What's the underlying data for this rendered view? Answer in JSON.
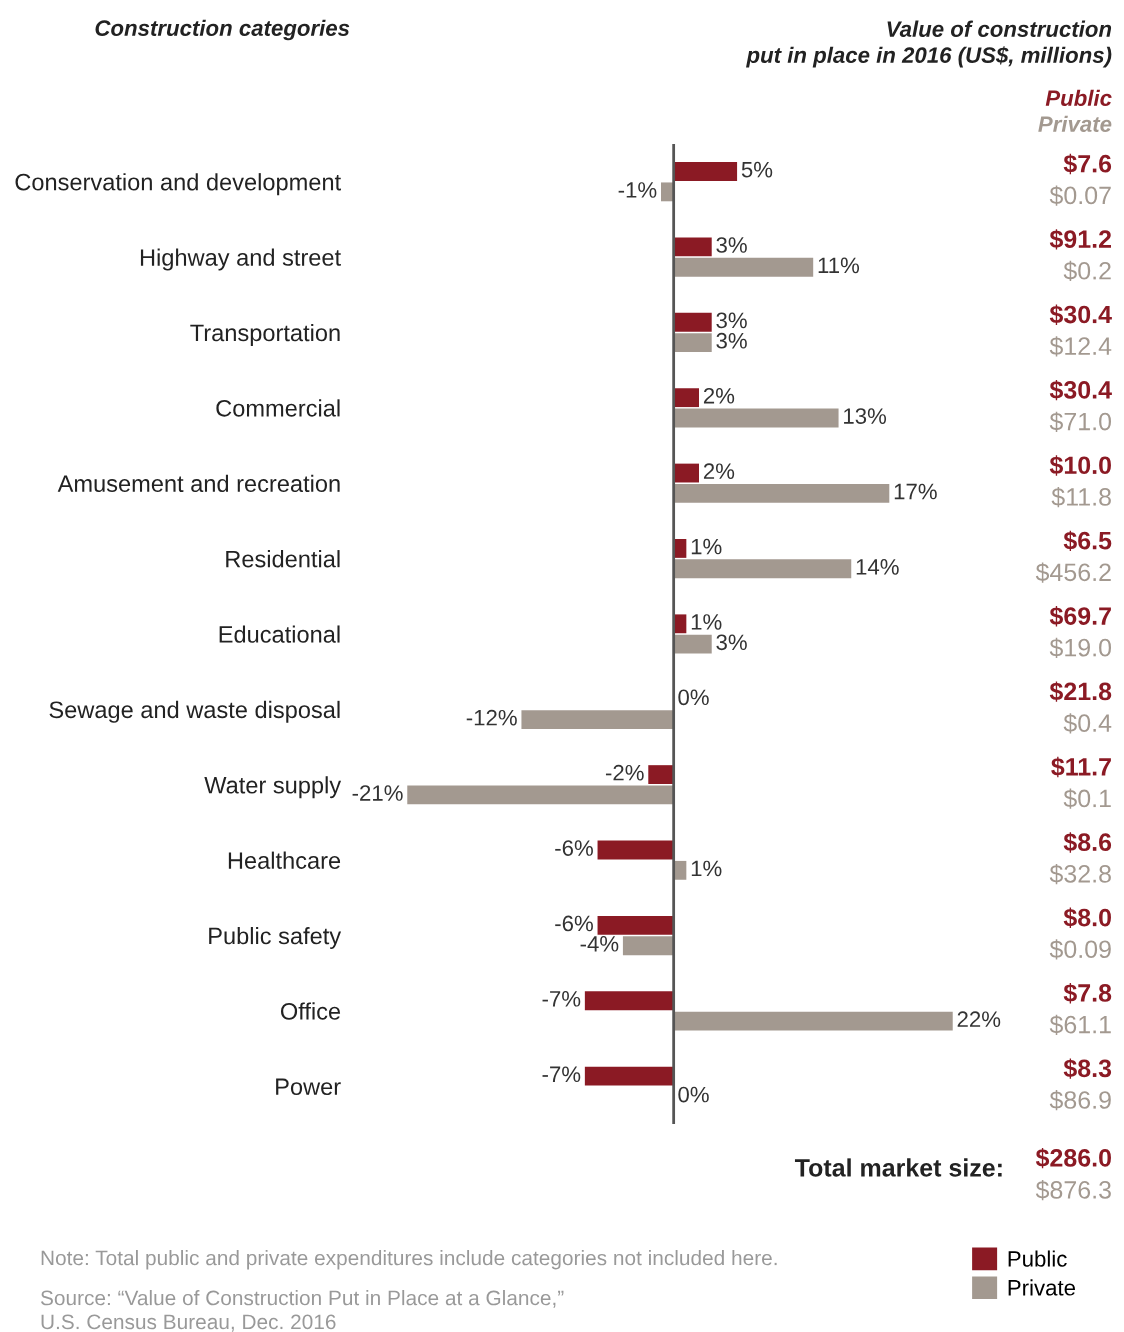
{
  "chart_data": {
    "type": "bar",
    "orientation": "horizontal",
    "ylabel": "Construction categories",
    "categories": [
      "Conservation and development",
      "Highway and street",
      "Transportation",
      "Commercial",
      "Amusement and recreation",
      "Residential",
      "Educational",
      "Sewage and waste disposal",
      "Water supply",
      "Healthcare",
      "Public safety",
      "Office",
      "Power"
    ],
    "series": [
      {
        "name": "Public",
        "color": "#8b1a24",
        "values": [
          5,
          3,
          3,
          2,
          2,
          1,
          1,
          0,
          -2,
          -6,
          -6,
          -7,
          -7
        ],
        "value_labels": [
          "5%",
          "3%",
          "3%",
          "2%",
          "2%",
          "1%",
          "1%",
          "0%",
          "-2%",
          "-6%",
          "-6%",
          "-7%",
          "-7%"
        ]
      },
      {
        "name": "Private",
        "color": "#a39990",
        "values": [
          -1,
          11,
          3,
          13,
          17,
          14,
          3,
          -12,
          -21,
          1,
          -4,
          22,
          0
        ],
        "value_labels": [
          "-1%",
          "11%",
          "3%",
          "13%",
          "17%",
          "14%",
          "3%",
          "-12%",
          "-21%",
          "1%",
          "-4%",
          "22%",
          "0%"
        ]
      }
    ],
    "legend": "bottom right",
    "annotations": [
      "Value of construction\nput in place in 2016 (US$, millions)",
      "$7.6",
      "$0.07",
      "$91.2",
      "$0.2",
      "$30.4",
      "$12.4",
      "$30.4",
      "$71.0",
      "$10.0",
      "$11.8",
      "$6.5",
      "$456.2",
      "$69.7",
      "$19.0",
      "$21.8",
      "$0.4",
      "$11.7",
      "$0.1",
      "$8.6",
      "$32.8",
      "$8.0",
      "$0.09",
      "$7.8",
      "$61.1",
      "$8.3",
      "$86.9",
      "Total market size:",
      "$286.0",
      "$876.3",
      "Note: Total public and private expenditures include categories not included here.",
      "Source: “Value of Construction Put in Place at a Glance,”\nU.S. Census Bureau, Dec. 2016"
    ]
  }
}
